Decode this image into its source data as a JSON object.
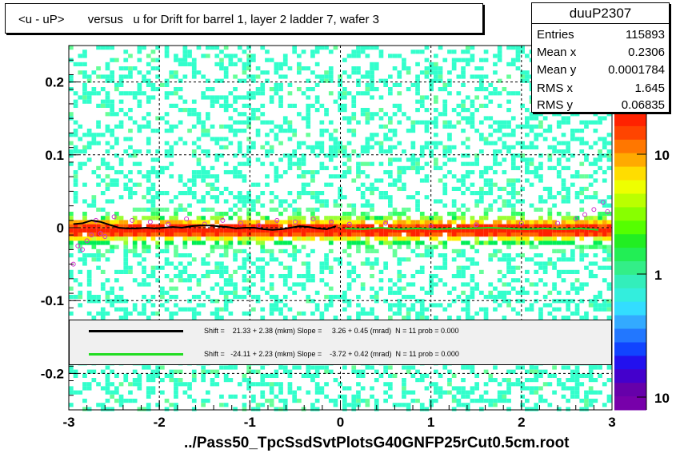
{
  "title": "<u - uP>       versus   u for Drift for barrel 1, layer 2 ladder 7, wafer 3",
  "stats": {
    "name": "duuP2307",
    "rows": [
      {
        "label": "Entries",
        "value": "115893"
      },
      {
        "label": "Mean x",
        "value": "0.2306"
      },
      {
        "label": "Mean y",
        "value": "0.0001784"
      },
      {
        "label": "RMS x",
        "value": "1.645"
      },
      {
        "label": "RMS y",
        "value": "0.06835"
      }
    ]
  },
  "legend": {
    "entries": [
      {
        "color": "#000000",
        "text": "Shift =    21.33 + 2.38 (mkm) Slope =     3.26 + 0.45 (mrad)  N = 11 prob = 0.000"
      },
      {
        "color": "#22dd22",
        "text": "Shift =   -24.11 + 2.23 (mkm) Slope =    -3.72 + 0.42 (mrad)  N = 11 prob = 0.000"
      }
    ]
  },
  "footer": "../Pass50_TpcSsdSvtPlotsG40GNFP25rCut0.5cm.root",
  "chart_data": {
    "type": "heatmap",
    "title": "<u - uP>       versus   u for Drift for barrel 1, layer 2 ladder 7, wafer 3",
    "xlim": [
      -3,
      3
    ],
    "ylim": [
      -0.25,
      0.25
    ],
    "xticks": [
      -3,
      -2,
      -1,
      0,
      1,
      2,
      3
    ],
    "xtick_labels": [
      "-3",
      "-2",
      "-1",
      "0",
      "1",
      "2",
      "3"
    ],
    "yticks": [
      -0.2,
      -0.1,
      0,
      0.1,
      0.2
    ],
    "ytick_labels": [
      "-0.2",
      "-0.1",
      "0",
      "0.1",
      "0.2"
    ],
    "colorbar": {
      "scale": "log",
      "tick_labels": [
        "10",
        "1",
        "10"
      ]
    },
    "grid": true,
    "profile_black": {
      "x": [
        -2.95,
        -2.85,
        -2.75,
        -2.65,
        -2.55,
        -2.45,
        -2.35,
        -2.25,
        -2.15,
        -2.05,
        -1.95,
        -1.85,
        -1.75,
        -1.65,
        -1.55,
        -1.45,
        -1.35,
        -1.25,
        -1.15,
        -1.05,
        -0.95,
        -0.85,
        -0.75,
        -0.65,
        -0.55,
        -0.45,
        -0.35,
        -0.25,
        -0.15,
        -0.05
      ],
      "y": [
        0.005,
        0.006,
        0.01,
        0.008,
        0.004,
        0.0,
        -0.001,
        -0.001,
        0.0,
        -0.001,
        0.0,
        0.001,
        0.0,
        0.002,
        0.003,
        0.003,
        0.002,
        0.001,
        -0.001,
        0.0,
        0.0,
        -0.002,
        -0.003,
        -0.002,
        0.0,
        0.002,
        0.001,
        -0.001,
        -0.002,
        0.002
      ]
    },
    "profile_green": {
      "x": [
        0.05,
        0.25,
        0.45,
        0.65,
        0.85,
        1.05,
        1.25,
        1.45,
        1.65,
        1.85,
        2.05,
        2.25,
        2.45,
        2.65,
        2.85
      ],
      "y": [
        -0.001,
        -0.002,
        0.0,
        -0.002,
        -0.001,
        -0.002,
        -0.001,
        -0.001,
        0.0,
        -0.001,
        -0.002,
        -0.001,
        -0.002,
        -0.001,
        -0.003
      ]
    },
    "mean_points": {
      "x": [
        -2.95,
        -2.9,
        -2.85,
        -2.8,
        -2.75,
        -2.7,
        -2.65,
        -2.6,
        -2.5,
        -2.3,
        -2.1,
        -1.9,
        -1.7,
        -1.5,
        -1.3,
        -1.1,
        -0.9,
        -0.7,
        -0.5,
        -0.3,
        -0.1,
        0.1,
        0.5,
        1.0,
        1.5,
        2.0,
        2.4,
        2.6,
        2.7,
        2.8,
        2.9,
        2.95
      ],
      "y": [
        -0.05,
        -0.025,
        -0.03,
        -0.018,
        -0.01,
        0.01,
        -0.008,
        -0.012,
        0.015,
        0.01,
        0.008,
        0.005,
        0.012,
        0.005,
        0.01,
        0.006,
        0.003,
        0.01,
        0.008,
        0.012,
        0.008,
        0.005,
        0.006,
        0.002,
        0.004,
        0.006,
        0.006,
        0.012,
        0.018,
        0.025,
        0.035,
        0.022
      ]
    }
  }
}
